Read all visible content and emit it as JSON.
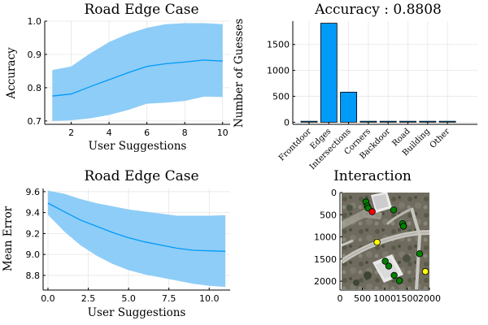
{
  "chart_data": [
    {
      "type": "line",
      "title": "Road Edge Case",
      "xlabel": "User Suggestions",
      "ylabel": "Accuracy",
      "xlim": [
        0.6,
        10.4
      ],
      "ylim": [
        0.69,
        1.0
      ],
      "xticks": [
        "2",
        "4",
        "6",
        "8",
        "10"
      ],
      "yticks": [
        "0.7",
        "0.8",
        "0.9",
        "1.0"
      ],
      "x": [
        1,
        2,
        3,
        4,
        5,
        6,
        7,
        8,
        9,
        10
      ],
      "series": [
        {
          "values": [
            0.775,
            0.781,
            0.803,
            0.824,
            0.845,
            0.864,
            0.872,
            0.877,
            0.883,
            0.88
          ],
          "lower": [
            0.7,
            0.702,
            0.708,
            0.718,
            0.733,
            0.752,
            0.755,
            0.76,
            0.773,
            0.772
          ],
          "upper": [
            0.853,
            0.864,
            0.903,
            0.937,
            0.962,
            0.98,
            0.991,
            0.994,
            0.994,
            0.991
          ],
          "color": "#009af9",
          "band_color": "#009af9"
        }
      ],
      "grid": true
    },
    {
      "type": "bar",
      "title": "Accuracy : 0.8808",
      "xlabel": "",
      "ylabel": "Number of Guesses",
      "ylim": [
        -40,
        1950
      ],
      "yticks": [
        "0",
        "500",
        "1000",
        "1500"
      ],
      "categories": [
        "Frontdoor",
        "Edges",
        "Intersections",
        "Corners",
        "Backdoor",
        "Road",
        "Building",
        "Other"
      ],
      "values": [
        0,
        1910,
        580,
        0,
        0,
        5,
        0,
        0
      ],
      "color": "#009af9",
      "grid": true
    },
    {
      "type": "line",
      "title": "Road Edge Case",
      "xlabel": "User Suggestions",
      "ylabel": "Mean Error",
      "xlim": [
        -0.3,
        11.3
      ],
      "ylim": [
        8.66,
        9.63
      ],
      "xticks": [
        "0.0",
        "2.5",
        "5.0",
        "7.5",
        "10.0"
      ],
      "yticks": [
        "8.8",
        "9.0",
        "9.2",
        "9.4",
        "9.6"
      ],
      "x": [
        0,
        1,
        2,
        3,
        4,
        5,
        6,
        7,
        8,
        9,
        10,
        11
      ],
      "series": [
        {
          "values": [
            9.49,
            9.41,
            9.33,
            9.27,
            9.21,
            9.16,
            9.12,
            9.09,
            9.06,
            9.04,
            9.035,
            9.03
          ],
          "lower": [
            9.38,
            9.22,
            9.09,
            8.99,
            8.91,
            8.85,
            8.81,
            8.78,
            8.75,
            8.72,
            8.7,
            8.69
          ],
          "upper": [
            9.61,
            9.58,
            9.53,
            9.49,
            9.46,
            9.43,
            9.41,
            9.39,
            9.37,
            9.37,
            9.37,
            9.375
          ],
          "color": "#009af9",
          "band_color": "#009af9"
        }
      ],
      "grid": true
    },
    {
      "type": "scatter",
      "title": "Interaction",
      "xlim": [
        0,
        2000
      ],
      "ylim": [
        2200,
        0
      ],
      "xticks": [
        "0",
        "500",
        "1000",
        "1500",
        "2000"
      ],
      "yticks": [
        "0",
        "500",
        "1000",
        "1500",
        "2000"
      ],
      "series": [
        {
          "name": "green",
          "color": "#008000",
          "points": [
            [
              580,
              210
            ],
            [
              610,
              300
            ],
            [
              630,
              350
            ],
            [
              1200,
              390
            ],
            [
              1400,
              700
            ],
            [
              1420,
              760
            ],
            [
              1780,
              1380
            ],
            [
              1010,
              1550
            ],
            [
              1090,
              1660
            ],
            [
              1210,
              1870
            ],
            [
              1330,
              1990
            ]
          ]
        },
        {
          "name": "red",
          "color": "#ff0000",
          "points": [
            [
              720,
              430
            ]
          ]
        },
        {
          "name": "yellow",
          "color": "#ffff00",
          "points": [
            [
              830,
              1120
            ],
            [
              1910,
              1780
            ]
          ]
        }
      ],
      "image": "aerial-photo"
    }
  ]
}
